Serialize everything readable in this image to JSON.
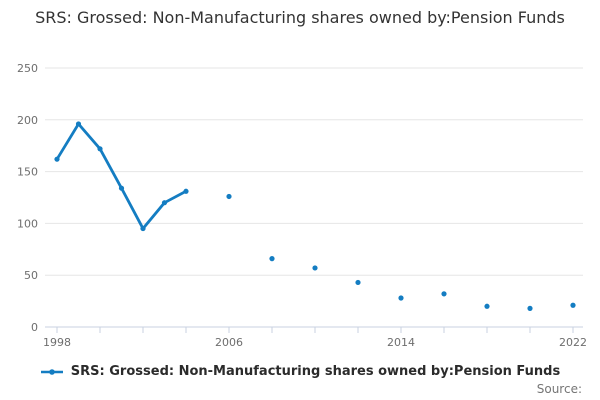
{
  "title": "SRS: Grossed: Non-Manufacturing shares owned by:Pension Funds",
  "legend": {
    "label": "SRS: Grossed: Non-Manufacturing shares owned by:Pension Funds"
  },
  "footer": {
    "source_label": "Source:"
  },
  "colors": {
    "series": "#147dc2",
    "grid": "#e6e6e6",
    "axis": "#c8d2e0",
    "tick_text": "#6e6e6e",
    "title_text": "#333333",
    "source_text": "#757575"
  },
  "chart_data": {
    "type": "line",
    "title": "SRS: Grossed: Non-Manufacturing shares owned by:Pension Funds",
    "xlabel": "",
    "ylabel": "",
    "xlim": [
      1998,
      2022
    ],
    "ylim": [
      0,
      250
    ],
    "yticks": [
      0,
      50,
      100,
      150,
      200,
      250
    ],
    "xticks": [
      1998,
      2000,
      2002,
      2004,
      2006,
      2008,
      2010,
      2012,
      2014,
      2016,
      2018,
      2020,
      2022
    ],
    "xtick_labels": [
      1998,
      2006,
      2014,
      2022
    ],
    "grid": "horizontal-only",
    "legend_position": "bottom",
    "marker": "dot",
    "line_policy": "connect only consecutive years; isolated points have no line",
    "series": [
      {
        "name": "SRS: Grossed: Non-Manufacturing shares owned by:Pension Funds",
        "points": [
          [
            1998,
            162
          ],
          [
            1999,
            196
          ],
          [
            2000,
            172
          ],
          [
            2001,
            134
          ],
          [
            2002,
            95
          ],
          [
            2003,
            120
          ],
          [
            2004,
            131
          ],
          [
            2006,
            126
          ],
          [
            2008,
            66
          ],
          [
            2010,
            57
          ],
          [
            2012,
            43
          ],
          [
            2014,
            28
          ],
          [
            2016,
            32
          ],
          [
            2018,
            20
          ],
          [
            2020,
            18
          ],
          [
            2022,
            21
          ]
        ]
      }
    ]
  }
}
